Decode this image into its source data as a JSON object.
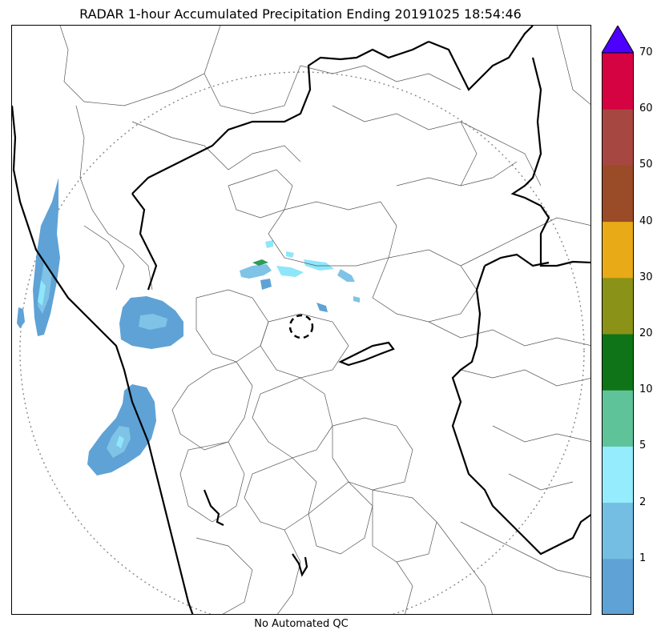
{
  "title": "RADAR 1-hour Accumulated Precipitation Ending 20191025 18:54:46",
  "footer_note": "No Automated QC",
  "colors": {
    "border_thick": "#000000",
    "border_thin": "#555555",
    "range_ring": "#888888",
    "rain_light": "#5fa2d6",
    "rain_mid": "#7fc3e6",
    "rain_cyan": "#8ee6fb",
    "rain_green": "#2e9b5a"
  },
  "colorbar": {
    "segments": [
      {
        "color": "#5fa2d6"
      },
      {
        "color": "#74bde3"
      },
      {
        "color": "#94ecfd"
      },
      {
        "color": "#5fc39a"
      },
      {
        "color": "#0f7417"
      },
      {
        "color": "#8a9218"
      },
      {
        "color": "#e8aa17"
      },
      {
        "color": "#9a4b27"
      },
      {
        "color": "#a74741"
      },
      {
        "color": "#d60342"
      }
    ],
    "extend_color": "#4d00ff",
    "tick_labels": [
      "1",
      "2",
      "5",
      "10",
      "20",
      "30",
      "40",
      "50",
      "60",
      "70"
    ]
  }
}
